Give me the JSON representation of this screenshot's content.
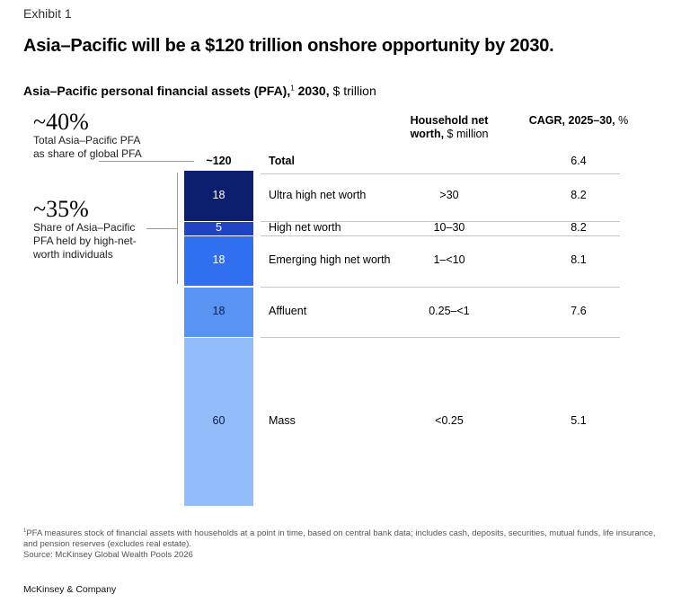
{
  "exhibit": "Exhibit 1",
  "title": "Asia–Pacific will be a $120 trillion onshore opportunity by 2030.",
  "subtitle": {
    "bold": "Asia–Pacific personal financial assets (PFA),",
    "sup": "1",
    "bold2": " 2030,",
    "rest": " $ trillion"
  },
  "callouts": [
    {
      "value": "~40%",
      "text": "Total Asia–Pacific PFA as share of global PFA"
    },
    {
      "value": "~35%",
      "text": "Share of Asia–Pacific PFA held by high-net-worth individuals"
    }
  ],
  "headers": {
    "worth_bold": "Household net worth,",
    "worth_unit": " $ million",
    "cagr_bold": "CAGR, 2025–30,",
    "cagr_unit": " %"
  },
  "total": {
    "bar_label": "~120",
    "label": "Total",
    "cagr": "6.4"
  },
  "chart_data": {
    "type": "bar",
    "stacked": true,
    "unit": "$ trillion",
    "categories": [
      "Ultra high net worth",
      "High net worth",
      "Emerging high net worth",
      "Affluent",
      "Mass"
    ],
    "values": [
      18,
      5,
      18,
      18,
      60
    ],
    "net_worth": [
      ">30",
      "10–30",
      "1–<10",
      "0.25–<1",
      "<0.25"
    ],
    "cagr": [
      "8.2",
      "8.2",
      "8.1",
      "7.6",
      "5.1"
    ],
    "colors": [
      "#0b1f6e",
      "#1f44c6",
      "#2f6ff0",
      "#5a94f2",
      "#93bdf9"
    ],
    "label_colors": [
      "#ffffff",
      "#ffffff",
      "#ffffff",
      "#0a1a4a",
      "#0a1a4a"
    ]
  },
  "footnote": {
    "sup": "1",
    "text": "PFA measures stock of financial assets with households at a point in time, based on central bank data; includes cash, deposits, securities, mutual funds, life insurance, and pension reserves (excludes real estate).",
    "source": "Source: McKinsey Global Wealth Pools 2026"
  },
  "brand": "McKinsey & Company"
}
